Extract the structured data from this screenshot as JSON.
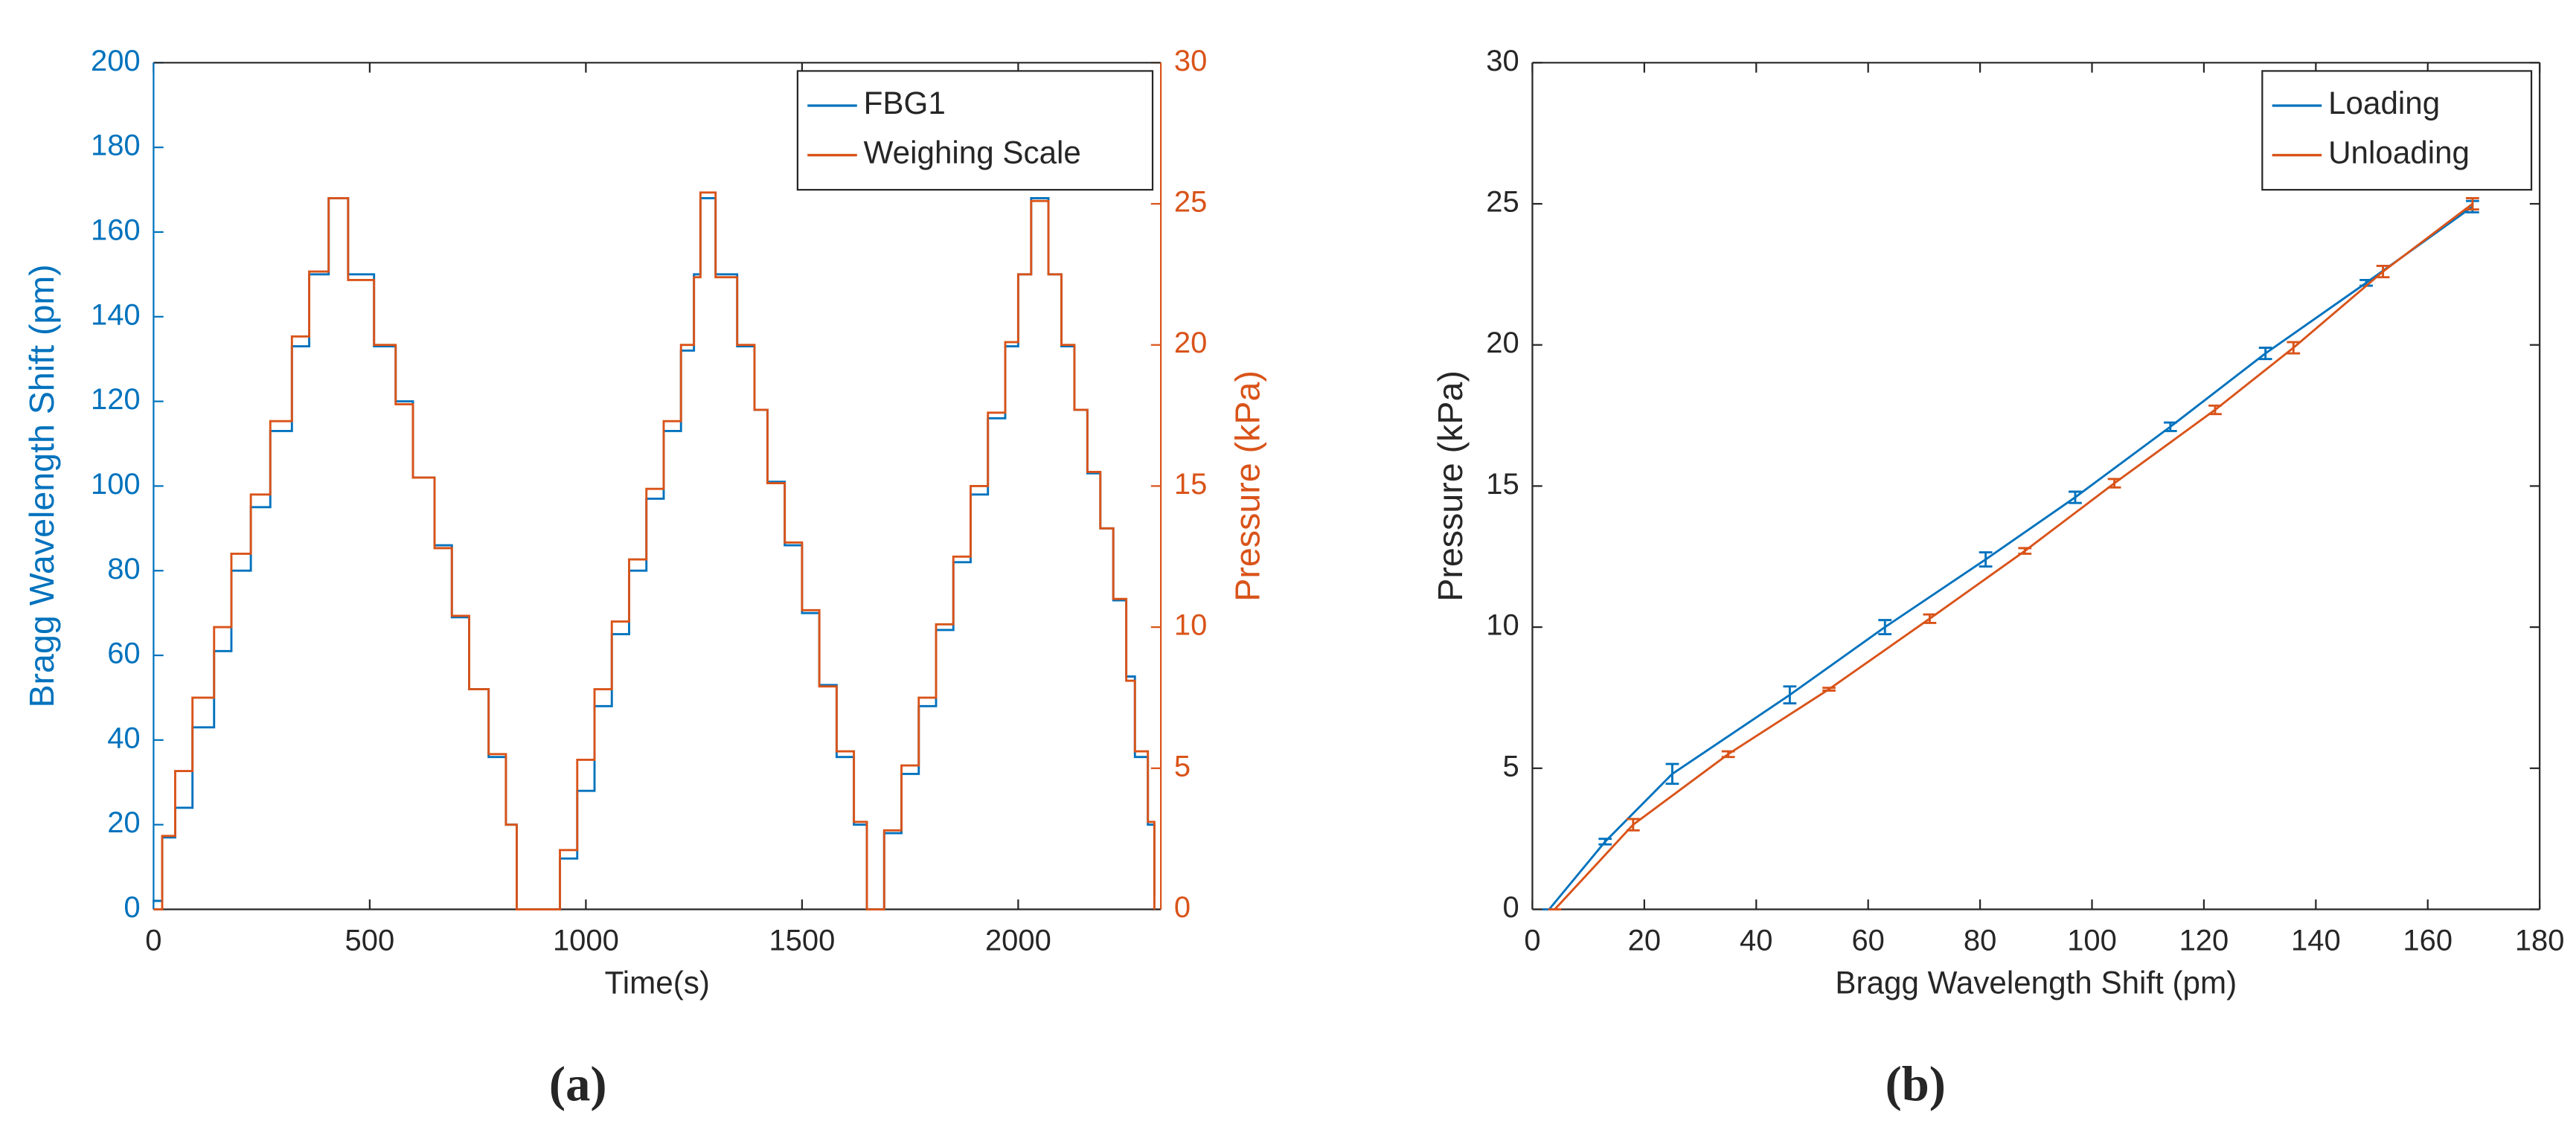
{
  "chart_data": [
    {
      "type": "line",
      "caption": "(a)",
      "xlabel": "Time(s)",
      "ylabel": "Bragg Wavelength Shift (pm)",
      "y2label": "Pressure (kPa)",
      "yaxis_color": "#0072bd",
      "y2axis_color": "#d95319",
      "step": true,
      "legend": "upper right",
      "xlim": [
        0,
        2330
      ],
      "xticks": [
        0,
        500,
        1000,
        1500,
        2000
      ],
      "ylim": [
        0,
        200
      ],
      "yticks": [
        0,
        20,
        40,
        60,
        80,
        100,
        120,
        140,
        160,
        180,
        200
      ],
      "y2lim": [
        0,
        30
      ],
      "y2ticks": [
        0,
        5,
        10,
        15,
        20,
        25,
        30
      ],
      "x": [
        0,
        20,
        50,
        90,
        140,
        180,
        225,
        270,
        320,
        360,
        405,
        450,
        510,
        560,
        600,
        650,
        690,
        730,
        775,
        815,
        840,
        940,
        980,
        1020,
        1060,
        1100,
        1140,
        1180,
        1220,
        1250,
        1265,
        1300,
        1350,
        1390,
        1420,
        1460,
        1500,
        1540,
        1580,
        1620,
        1650,
        1690,
        1730,
        1770,
        1810,
        1850,
        1890,
        1930,
        1970,
        2000,
        2030,
        2070,
        2100,
        2130,
        2160,
        2190,
        2220,
        2250,
        2270,
        2300,
        2315
      ],
      "series": [
        {
          "name": "FBG1",
          "color": "#0072bd",
          "values": [
            2,
            17,
            24,
            43,
            61,
            80,
            95,
            113,
            133,
            150,
            168,
            150,
            133,
            120,
            102,
            86,
            69,
            52,
            36,
            20,
            0,
            12,
            28,
            48,
            65,
            80,
            97,
            113,
            132,
            150,
            168,
            150,
            133,
            118,
            101,
            86,
            70,
            53,
            36,
            20,
            0,
            18,
            32,
            48,
            66,
            82,
            98,
            116,
            133,
            150,
            168,
            150,
            133,
            118,
            103,
            90,
            73,
            55,
            36,
            20,
            3
          ]
        },
        {
          "name": "Weighing Scale",
          "color": "#d95319",
          "axis": "y2",
          "values": [
            0,
            2.6,
            4.9,
            7.5,
            10.0,
            12.6,
            14.7,
            17.3,
            20.3,
            22.6,
            25.2,
            22.3,
            20.0,
            17.9,
            15.3,
            12.8,
            10.4,
            7.8,
            5.5,
            3.0,
            0,
            2.1,
            5.3,
            7.8,
            10.2,
            12.4,
            14.9,
            17.3,
            20.0,
            22.4,
            25.4,
            22.4,
            20.0,
            17.7,
            15.1,
            13.0,
            10.6,
            7.9,
            5.6,
            3.1,
            0,
            2.8,
            5.1,
            7.5,
            10.1,
            12.5,
            15.0,
            17.6,
            20.1,
            22.5,
            25.1,
            22.5,
            20.0,
            17.7,
            15.5,
            13.5,
            11.0,
            8.1,
            5.6,
            3.1,
            0
          ]
        }
      ]
    },
    {
      "type": "errorbar",
      "caption": "(b)",
      "xlabel": "Bragg Wavelength Shift (pm)",
      "ylabel": "Pressure (kPa)",
      "legend": "upper right",
      "xlim": [
        0,
        180
      ],
      "xticks": [
        0,
        20,
        40,
        60,
        80,
        100,
        120,
        140,
        160,
        180
      ],
      "ylim": [
        0,
        30
      ],
      "yticks": [
        0,
        5,
        10,
        15,
        20,
        25,
        30
      ],
      "series": [
        {
          "name": "Loading",
          "color": "#0072bd",
          "x": [
            3,
            13,
            25,
            46,
            63,
            81,
            97,
            114,
            131,
            149,
            168
          ],
          "values": [
            0,
            2.4,
            4.8,
            7.6,
            10.0,
            12.4,
            14.6,
            17.1,
            19.7,
            22.2,
            24.9
          ],
          "errors": [
            0,
            0.1,
            0.35,
            0.3,
            0.25,
            0.25,
            0.2,
            0.15,
            0.2,
            0.1,
            0.2
          ]
        },
        {
          "name": "Unloading",
          "color": "#d95319",
          "x": [
            4,
            18,
            35,
            53,
            71,
            88,
            104,
            122,
            136,
            152,
            168
          ],
          "values": [
            0,
            3.0,
            5.5,
            7.8,
            10.3,
            12.7,
            15.1,
            17.7,
            19.9,
            22.6,
            25.0
          ],
          "errors": [
            0,
            0.2,
            0.1,
            0.05,
            0.15,
            0.1,
            0.15,
            0.15,
            0.2,
            0.2,
            0.2
          ]
        }
      ]
    }
  ]
}
